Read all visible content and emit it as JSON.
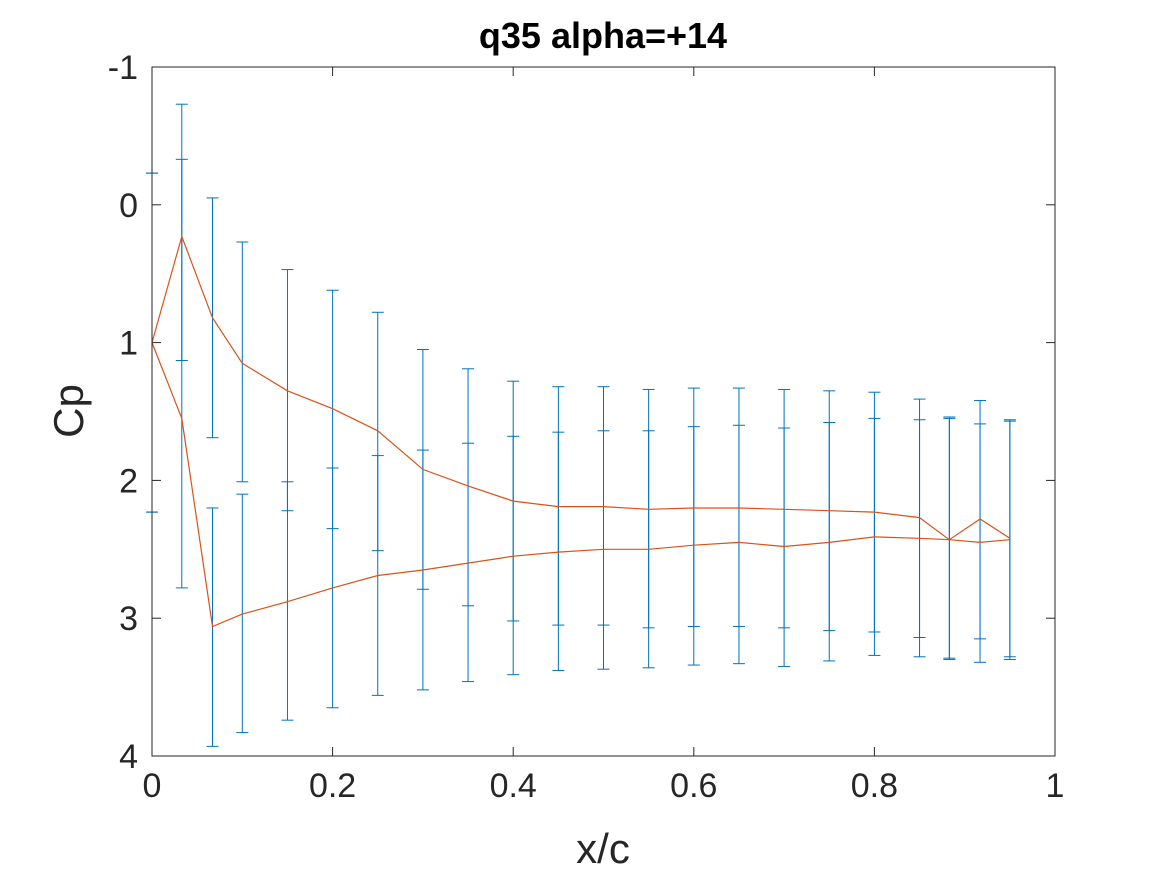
{
  "chart_data": {
    "type": "line",
    "title": "q35 alpha=+14",
    "xlabel": "x/c",
    "ylabel": "Cp",
    "xlim": [
      0,
      1
    ],
    "ylim": [
      -1,
      4
    ],
    "y_reversed": true,
    "xticks": [
      "0",
      "0.2",
      "0.4",
      "0.6",
      "0.8",
      "1"
    ],
    "xtick_values": [
      0,
      0.2,
      0.4,
      0.6,
      0.8,
      1
    ],
    "yticks": [
      "-1",
      "0",
      "1",
      "2",
      "3",
      "4"
    ],
    "ytick_values": [
      -1,
      0,
      1,
      2,
      3,
      4
    ],
    "grid": false,
    "error_bar_color": "#0072BD",
    "line_color": "#D95319",
    "series": [
      {
        "x": [
          0,
          0.033,
          0.067,
          0.1,
          0.15,
          0.2,
          0.25,
          0.3,
          0.35,
          0.4,
          0.45,
          0.5,
          0.55,
          0.6,
          0.65,
          0.7,
          0.75,
          0.8,
          0.85,
          0.883,
          0.917,
          0.95
        ],
        "values": [
          1.0,
          0.23,
          0.82,
          1.15,
          1.35,
          1.48,
          1.64,
          1.92,
          2.04,
          2.15,
          2.19,
          2.19,
          2.21,
          2.2,
          2.2,
          2.21,
          2.22,
          2.23,
          2.27,
          2.43,
          2.28,
          2.42
        ],
        "error_low": [
          -0.23,
          -0.73,
          -0.05,
          0.27,
          0.47,
          0.62,
          0.78,
          1.05,
          1.19,
          1.28,
          1.32,
          1.32,
          1.34,
          1.33,
          1.33,
          1.34,
          1.35,
          1.36,
          1.41,
          1.55,
          1.42,
          1.56
        ],
        "error_high": [
          2.23,
          1.13,
          1.69,
          2.01,
          2.22,
          2.35,
          2.51,
          2.79,
          2.91,
          3.02,
          3.05,
          3.05,
          3.07,
          3.06,
          3.06,
          3.07,
          3.09,
          3.1,
          3.14,
          3.29,
          3.15,
          3.28
        ]
      },
      {
        "x": [
          0,
          0.033,
          0.067,
          0.1,
          0.15,
          0.2,
          0.25,
          0.3,
          0.35,
          0.4,
          0.45,
          0.5,
          0.55,
          0.6,
          0.65,
          0.7,
          0.75,
          0.8,
          0.85,
          0.883,
          0.917,
          0.95
        ],
        "values": [
          1.0,
          1.55,
          3.06,
          2.97,
          2.88,
          2.78,
          2.69,
          2.65,
          2.6,
          2.55,
          2.52,
          2.5,
          2.5,
          2.47,
          2.45,
          2.48,
          2.45,
          2.41,
          2.42,
          2.43,
          2.45,
          2.43
        ],
        "error_low": [
          -0.23,
          -0.33,
          2.2,
          2.1,
          2.01,
          1.91,
          1.82,
          1.78,
          1.73,
          1.68,
          1.65,
          1.64,
          1.64,
          1.61,
          1.6,
          1.62,
          1.58,
          1.55,
          1.56,
          1.54,
          1.59,
          1.57
        ],
        "error_high": [
          2.23,
          2.78,
          3.93,
          3.83,
          3.74,
          3.65,
          3.56,
          3.52,
          3.46,
          3.41,
          3.38,
          3.37,
          3.36,
          3.34,
          3.33,
          3.35,
          3.31,
          3.27,
          3.28,
          3.3,
          3.32,
          3.3
        ]
      }
    ]
  }
}
